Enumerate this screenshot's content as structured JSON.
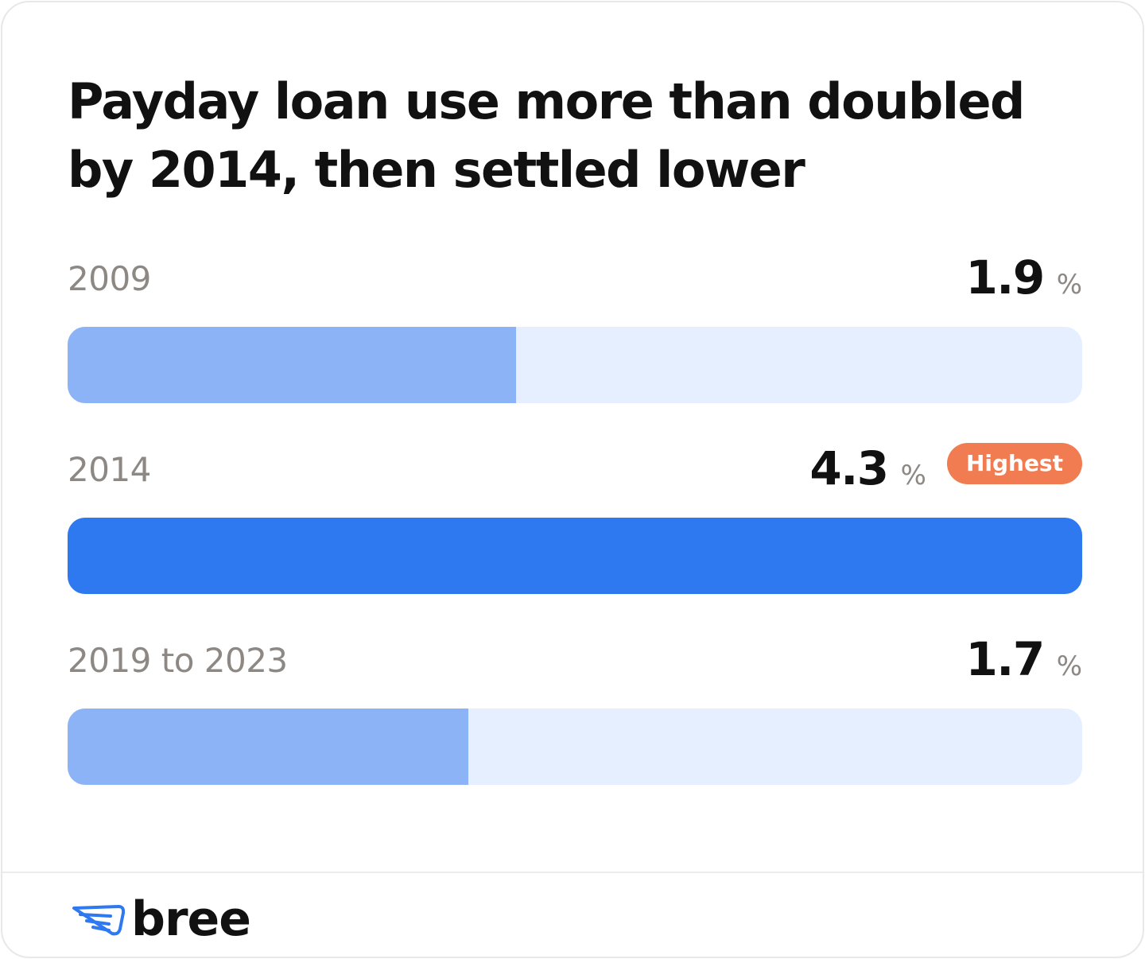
{
  "chart_data": {
    "type": "bar",
    "orientation": "horizontal",
    "title": "Payday loan use more than doubled by 2014, then settled lower",
    "categories": [
      "2009",
      "2014",
      "2019 to 2023"
    ],
    "values": [
      1.9,
      4.3,
      1.7
    ],
    "unit": "%",
    "highlight": {
      "category": "2014",
      "label": "Highest"
    },
    "xlim": [
      0,
      4.3
    ],
    "colors": {
      "normal": "#8db3f7",
      "highlight": "#2e78f0",
      "track": "#e6efff",
      "badge": "#f27c52"
    }
  },
  "rows": [
    {
      "label": "2009",
      "value": "1.9",
      "unit": "%"
    },
    {
      "label": "2014",
      "value": "4.3",
      "unit": "%",
      "badge": "Highest"
    },
    {
      "label": "2019 to 2023",
      "value": "1.7",
      "unit": "%"
    }
  ],
  "brand": {
    "name": "bree",
    "icon": "wing-icon"
  }
}
